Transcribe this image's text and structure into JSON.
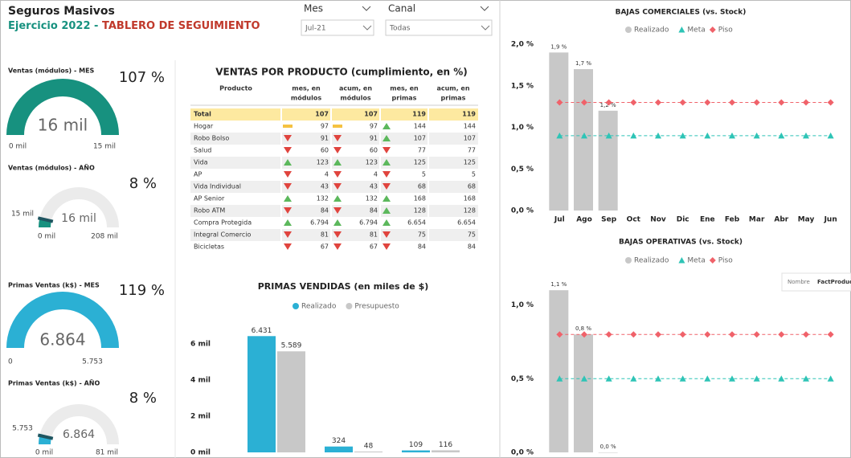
{
  "header": {
    "title": "Seguros Masivos",
    "subtitle": "Ejercicio 2022 -",
    "subtitle_highlight": "TABLERO DE SEGUIMIENTO"
  },
  "slicers": [
    {
      "label": "Mes",
      "value": "Jul-21"
    },
    {
      "label": "Canal",
      "value": "Todas"
    }
  ],
  "tooltip": {
    "label": "Nombre",
    "value": "FactProduc"
  },
  "gauges": [
    {
      "title": "Ventas (módulos) - MES",
      "percent": "107 %",
      "color": "#17917f",
      "value": {
        "value": 16,
        "label": "16 mil"
      },
      "min": {
        "value": 0,
        "label": "0 mil"
      },
      "max": {
        "value": 15,
        "label": "15 mil"
      }
    },
    {
      "title": "Ventas (módulos) - AÑO",
      "percent": "8 %",
      "color": "#17917f",
      "value": {
        "value": 16,
        "label": "16 mil"
      },
      "min": {
        "value": 0,
        "label": "0 mil"
      },
      "max": {
        "value": 208,
        "label": "208 mil"
      },
      "target": {
        "value": 15,
        "label": "15 mil"
      }
    },
    {
      "title": "Primas Ventas (k$) - MES",
      "percent": "119 %",
      "color": "#2bb0d4",
      "value": {
        "value": 6864,
        "label": "6.864"
      },
      "min": {
        "value": 0,
        "label": "0"
      },
      "max": {
        "value": 5753,
        "label": "5.753"
      }
    },
    {
      "title": "Primas Ventas (k$) - AÑO",
      "percent": "8 %",
      "color": "#2bb0d4",
      "value": {
        "value": 6864,
        "label": "6.864"
      },
      "min": {
        "value": 0,
        "label": "0 mil"
      },
      "max": {
        "value": 81000,
        "label": "81 mil"
      },
      "target": {
        "value": 5753,
        "label": "5.753"
      }
    }
  ],
  "table": {
    "title": "VENTAS POR PRODUCTO (cumplimiento, en %)",
    "columns": [
      [
        "Producto"
      ],
      [
        "mes, en",
        "módulos"
      ],
      [
        "acum, en",
        "módulos"
      ],
      [
        "mes, en",
        "primas"
      ],
      [
        "acum, en",
        "primas"
      ]
    ],
    "total": [
      "Total",
      107,
      107,
      119,
      119
    ],
    "rows": [
      [
        "Hogar",
        97,
        97,
        144,
        144
      ],
      [
        "Robo Bolso",
        91,
        91,
        107,
        107
      ],
      [
        "Salud",
        60,
        60,
        77,
        77
      ],
      [
        "Vida",
        123,
        123,
        125,
        125
      ],
      [
        "AP",
        4,
        4,
        5,
        5
      ],
      [
        "Vida Individual",
        43,
        43,
        68,
        68
      ],
      [
        "AP Senior",
        132,
        132,
        168,
        168
      ],
      [
        "Robo ATM",
        84,
        84,
        128,
        128
      ],
      [
        "Compra Protegida",
        "6.794",
        "6.794",
        "6.654",
        "6.654"
      ],
      [
        "Integral Comercio",
        81,
        81,
        75,
        75
      ],
      [
        "Bicicletas",
        67,
        67,
        84,
        84
      ]
    ],
    "icons": [
      [
        "flat",
        "flat",
        "up"
      ],
      [
        "down",
        "down",
        "up"
      ],
      [
        "down",
        "down",
        "down"
      ],
      [
        "up",
        "up",
        "up"
      ],
      [
        "down",
        "down",
        "down"
      ],
      [
        "down",
        "down",
        "down"
      ],
      [
        "up",
        "up",
        "up"
      ],
      [
        "down",
        "down",
        "up"
      ],
      [
        "up",
        "up",
        "up"
      ],
      [
        "down",
        "down",
        "down"
      ],
      [
        "down",
        "down",
        "down"
      ]
    ]
  },
  "chart_data": [
    {
      "type": "bar",
      "title": "PRIMAS VENDIDAS (en miles de $)",
      "categories": [
        null,
        null,
        null
      ],
      "series": [
        {
          "name": "Realizado",
          "color": "#2bb0d4",
          "values": [
            6431,
            324,
            109
          ],
          "value_labels": [
            "6.431",
            "324",
            "109"
          ]
        },
        {
          "name": "Presupuesto",
          "color": "#c8c8c8",
          "values": [
            5589,
            48,
            116
          ],
          "value_labels": [
            "5.589",
            "48",
            "116"
          ]
        }
      ],
      "ylim": [
        0,
        7000
      ],
      "yticks": [
        {
          "value": 0,
          "label": "0 mil"
        },
        {
          "value": 2000,
          "label": "2 mil"
        },
        {
          "value": 4000,
          "label": "4 mil"
        },
        {
          "value": 6000,
          "label": "6 mil"
        }
      ],
      "grid": false,
      "legend": "top"
    },
    {
      "type": "combo",
      "title": "BAJAS COMERCIALES (vs. Stock)",
      "categories": [
        "Jul",
        "Ago",
        "Sep",
        "Oct",
        "Nov",
        "Dic",
        "Ene",
        "Feb",
        "Mar",
        "Abr",
        "May",
        "Jun"
      ],
      "series": [
        {
          "name": "Realizado",
          "type": "bar",
          "color": "#c8c8c8",
          "values": [
            1.9,
            1.7,
            1.2,
            null,
            null,
            null,
            null,
            null,
            null,
            null,
            null,
            null
          ],
          "value_labels": [
            "1,9 %",
            "1,7 %",
            "1,2 %",
            null,
            null,
            null,
            null,
            null,
            null,
            null,
            null,
            null
          ]
        },
        {
          "name": "Meta",
          "type": "line",
          "marker": "triangle",
          "color": "#2ec4b6",
          "values": [
            0.9,
            0.9,
            0.9,
            0.9,
            0.9,
            0.9,
            0.9,
            0.9,
            0.9,
            0.9,
            0.9,
            0.9
          ]
        },
        {
          "name": "Piso",
          "type": "line",
          "marker": "diamond",
          "color": "#f0626a",
          "values": [
            1.3,
            1.3,
            1.3,
            1.3,
            1.3,
            1.3,
            1.3,
            1.3,
            1.3,
            1.3,
            1.3,
            1.3
          ]
        }
      ],
      "ylim": [
        0,
        2
      ],
      "yticks": [
        {
          "value": 0,
          "label": "0,0 %"
        },
        {
          "value": 0.5,
          "label": "0,5 %"
        },
        {
          "value": 1,
          "label": "1,0 %"
        },
        {
          "value": 1.5,
          "label": "1,5 %"
        },
        {
          "value": 2,
          "label": "2,0 %"
        }
      ],
      "grid": false,
      "legend": "top"
    },
    {
      "type": "combo",
      "title": "BAJAS OPERATIVAS (vs. Stock)",
      "categories": [
        null,
        null,
        null,
        null,
        null,
        null,
        null,
        null,
        null,
        null,
        null,
        null
      ],
      "series": [
        {
          "name": "Realizado",
          "type": "bar",
          "color": "#c8c8c8",
          "values": [
            1.1,
            0.8,
            0.0,
            null,
            null,
            null,
            null,
            null,
            null,
            null,
            null,
            null
          ],
          "value_labels": [
            "1,1 %",
            "0,8 %",
            "0,0 %",
            null,
            null,
            null,
            null,
            null,
            null,
            null,
            null,
            null
          ]
        },
        {
          "name": "Meta",
          "type": "line",
          "marker": "triangle",
          "color": "#2ec4b6",
          "values": [
            0.5,
            0.5,
            0.5,
            0.5,
            0.5,
            0.5,
            0.5,
            0.5,
            0.5,
            0.5,
            0.5,
            0.5
          ]
        },
        {
          "name": "Piso",
          "type": "line",
          "marker": "diamond",
          "color": "#f0626a",
          "values": [
            0.8,
            0.8,
            0.8,
            0.8,
            0.8,
            0.8,
            0.8,
            0.8,
            0.8,
            0.8,
            0.8,
            0.8
          ]
        }
      ],
      "ylim": [
        0,
        1.15
      ],
      "yticks": [
        {
          "value": 0,
          "label": "0,0 %"
        },
        {
          "value": 0.5,
          "label": "0,5 %"
        },
        {
          "value": 1,
          "label": "1,0 %"
        }
      ],
      "grid": false,
      "legend": "top"
    }
  ]
}
